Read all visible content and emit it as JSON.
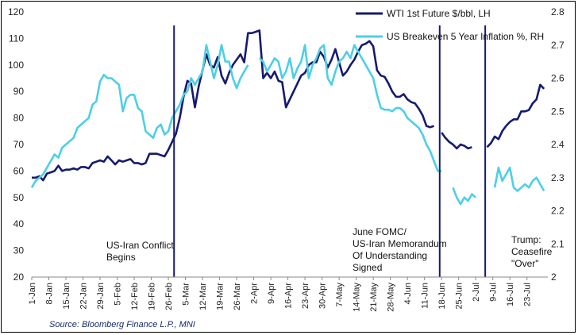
{
  "chart_data": {
    "type": "line",
    "title": "",
    "source": "Source: Bloomberg Finance L.P., MNI",
    "y_left": {
      "min": 20,
      "max": 120,
      "ticks": [
        "20",
        "30",
        "40",
        "50",
        "60",
        "70",
        "80",
        "90",
        "100",
        "110",
        "120"
      ]
    },
    "y_right": {
      "min": 2.0,
      "max": 2.8,
      "ticks": [
        "2",
        "2.1",
        "2.2",
        "2.3",
        "2.4",
        "2.5",
        "2.6",
        "2.7",
        "2.8"
      ]
    },
    "x_ticks": [
      "1-Jan",
      "8-Jan",
      "15-Jan",
      "22-Jan",
      "29-Jan",
      "5-Feb",
      "12-Feb",
      "19-Feb",
      "26-Feb",
      "5-Mar",
      "12-Mar",
      "19-Mar",
      "26-Mar",
      "2-Apr",
      "9-Apr",
      "16-Apr",
      "23-Apr",
      "30-Apr",
      "7-May",
      "14-May",
      "21-May",
      "28-May",
      "4-Jun",
      "11-Jun",
      "18-Jun",
      "25-Jun",
      "2-Jul",
      "9-Jul",
      "16-Jul",
      "23-Jul"
    ],
    "grid": false,
    "legend_placement": "top-right",
    "series": [
      {
        "name": "WTI 1st Future $/bbl, LH",
        "axis": "left",
        "color": "#161a6e",
        "segments": [
          [
            [
              0,
              57.5
            ],
            [
              1,
              57.5
            ],
            [
              2,
              58
            ],
            [
              3,
              56.5
            ],
            [
              4,
              59
            ],
            [
              5,
              59.5
            ],
            [
              6,
              60
            ],
            [
              7,
              62
            ],
            [
              8,
              60
            ],
            [
              9,
              60.5
            ],
            [
              10,
              60.5
            ],
            [
              11,
              61
            ],
            [
              12,
              60.5
            ],
            [
              13,
              61.5
            ],
            [
              14,
              61.5
            ],
            [
              15,
              61
            ],
            [
              16,
              63
            ],
            [
              17,
              63.5
            ],
            [
              18,
              64
            ],
            [
              19,
              63.5
            ],
            [
              20,
              65.5
            ],
            [
              21,
              64
            ],
            [
              22,
              62.5
            ],
            [
              23,
              64
            ],
            [
              24,
              63.5
            ],
            [
              25,
              64
            ],
            [
              26,
              64.5
            ],
            [
              27,
              63
            ],
            [
              28,
              63
            ],
            [
              29,
              62.5
            ],
            [
              30,
              63
            ],
            [
              31,
              66.5
            ],
            [
              32,
              66.5
            ],
            [
              33,
              66.5
            ],
            [
              34,
              66
            ],
            [
              35,
              65.5
            ],
            [
              36,
              68
            ],
            [
              37,
              71
            ],
            [
              38,
              74
            ],
            [
              39,
              80
            ],
            [
              40,
              88
            ],
            [
              41,
              94
            ],
            [
              42,
              93
            ],
            [
              43,
              84
            ],
            [
              44,
              92
            ],
            [
              45,
              98
            ],
            [
              46,
              104
            ],
            [
              47,
              100
            ],
            [
              48,
              99
            ],
            [
              49,
              103
            ],
            [
              50,
              96
            ],
            [
              51,
              93
            ],
            [
              52,
              97
            ],
            [
              53,
              100
            ],
            [
              54,
              102
            ],
            [
              55,
              104
            ],
            [
              56,
              101
            ],
            [
              57,
              112
            ],
            [
              58,
              112
            ],
            [
              59,
              112.5
            ],
            [
              60,
              113
            ],
            [
              61,
              95
            ],
            [
              62,
              97
            ],
            [
              63,
              95
            ],
            [
              64,
              97.5
            ],
            [
              65,
              94
            ],
            [
              66,
              93.5
            ],
            [
              67,
              84
            ],
            [
              68,
              87
            ],
            [
              69,
              90
            ],
            [
              70,
              93
            ],
            [
              71,
              96
            ],
            [
              72,
              97
            ],
            [
              73,
              100
            ],
            [
              74,
              101
            ],
            [
              75,
              101
            ],
            [
              76,
              105
            ],
            [
              77,
              103
            ],
            [
              78,
              99
            ],
            [
              79,
              102
            ],
            [
              80,
              106
            ],
            [
              81,
              101
            ],
            [
              82,
              96
            ],
            [
              83,
              97.5
            ],
            [
              84,
              100
            ],
            [
              85,
              102
            ],
            [
              86,
              105
            ],
            [
              87,
              107.5
            ],
            [
              88,
              108
            ],
            [
              89,
              109
            ],
            [
              90,
              107
            ],
            [
              91,
              98
            ],
            [
              92,
              96
            ],
            [
              93,
              95.5
            ],
            [
              94,
              93
            ],
            [
              95,
              90
            ],
            [
              96,
              88
            ],
            [
              97,
              88
            ],
            [
              98,
              89
            ],
            [
              99,
              87
            ],
            [
              100,
              86
            ],
            [
              101,
              85.5
            ],
            [
              102,
              83.5
            ],
            [
              103,
              81
            ],
            [
              104,
              77
            ],
            [
              105,
              76.5
            ],
            [
              106,
              77
            ]
          ],
          [
            [
              108,
              74.5
            ],
            [
              109,
              72.5
            ],
            [
              110,
              71
            ],
            [
              111,
              70
            ],
            [
              112,
              68.5
            ],
            [
              113,
              70
            ],
            [
              114,
              69.5
            ],
            [
              115,
              68.5
            ],
            [
              116,
              69
            ]
          ],
          [
            [
              120,
              69
            ],
            [
              121,
              70.5
            ],
            [
              122,
              73
            ],
            [
              123,
              72
            ],
            [
              124,
              75
            ],
            [
              125,
              77
            ],
            [
              126,
              78.5
            ],
            [
              127,
              79.5
            ],
            [
              128,
              79.5
            ],
            [
              129,
              82.5
            ],
            [
              130,
              82.5
            ],
            [
              131,
              83
            ],
            [
              132,
              85.5
            ],
            [
              133,
              87
            ],
            [
              134,
              92.5
            ],
            [
              135,
              91
            ]
          ]
        ]
      },
      {
        "name": "US Breakeven 5 Year Inflation %, RH",
        "axis": "right",
        "color": "#4dcfe6",
        "segments": [
          [
            [
              0,
              2.27
            ],
            [
              1,
              2.29
            ],
            [
              2,
              2.3
            ],
            [
              3,
              2.31
            ],
            [
              4,
              2.33
            ],
            [
              5,
              2.35
            ],
            [
              6,
              2.37
            ],
            [
              7,
              2.36
            ],
            [
              8,
              2.39
            ],
            [
              9,
              2.4
            ],
            [
              10,
              2.41
            ],
            [
              11,
              2.42
            ],
            [
              12,
              2.45
            ],
            [
              13,
              2.46
            ],
            [
              14,
              2.47
            ],
            [
              15,
              2.48
            ],
            [
              16,
              2.52
            ],
            [
              17,
              2.53
            ],
            [
              18,
              2.59
            ],
            [
              19,
              2.61
            ],
            [
              20,
              2.6
            ],
            [
              21,
              2.6
            ],
            [
              22,
              2.59
            ],
            [
              23,
              2.58
            ],
            [
              24,
              2.5
            ],
            [
              25,
              2.54
            ],
            [
              26,
              2.55
            ],
            [
              27,
              2.55
            ],
            [
              28,
              2.51
            ],
            [
              29,
              2.5
            ],
            [
              30,
              2.44
            ],
            [
              31,
              2.43
            ],
            [
              32,
              2.42
            ],
            [
              33,
              2.45
            ],
            [
              34,
              2.46
            ],
            [
              35,
              2.43
            ],
            [
              36,
              2.44
            ],
            [
              37,
              2.48
            ],
            [
              38,
              2.5
            ],
            [
              39,
              2.52
            ],
            [
              40,
              2.55
            ],
            [
              41,
              2.56
            ],
            [
              42,
              2.6
            ],
            [
              43,
              2.58
            ],
            [
              44,
              2.6
            ],
            [
              45,
              2.62
            ],
            [
              46,
              2.7
            ],
            [
              47,
              2.65
            ],
            [
              48,
              2.6
            ],
            [
              49,
              2.64
            ],
            [
              50,
              2.7
            ],
            [
              51,
              2.65
            ],
            [
              52,
              2.65
            ],
            [
              53,
              2.6
            ],
            [
              54,
              2.57
            ],
            [
              55,
              2.6
            ],
            [
              56,
              2.62
            ],
            [
              57,
              2.64
            ]
          ],
          [
            [
              60,
              2.66
            ],
            [
              61,
              2.65
            ],
            [
              62,
              2.62
            ],
            [
              63,
              2.64
            ],
            [
              64,
              2.66
            ],
            [
              65,
              2.65
            ],
            [
              66,
              2.6
            ],
            [
              67,
              2.62
            ],
            [
              68,
              2.66
            ],
            [
              69,
              2.6
            ],
            [
              70,
              2.63
            ],
            [
              71,
              2.65
            ],
            [
              72,
              2.7
            ],
            [
              73,
              2.6
            ],
            [
              74,
              2.64
            ],
            [
              75,
              2.66
            ],
            [
              76,
              2.69
            ],
            [
              77,
              2.7
            ],
            [
              78,
              2.6
            ],
            [
              79,
              2.58
            ],
            [
              80,
              2.62
            ],
            [
              81,
              2.65
            ],
            [
              82,
              2.66
            ],
            [
              83,
              2.68
            ],
            [
              84,
              2.66
            ],
            [
              85,
              2.7
            ],
            [
              86,
              2.68
            ],
            [
              87,
              2.66
            ],
            [
              88,
              2.64
            ],
            [
              89,
              2.62
            ],
            [
              90,
              2.6
            ],
            [
              91,
              2.55
            ],
            [
              92,
              2.51
            ],
            [
              93,
              2.505
            ],
            [
              94,
              2.505
            ],
            [
              95,
              2.5
            ],
            [
              96,
              2.51
            ],
            [
              97,
              2.51
            ],
            [
              98,
              2.5
            ],
            [
              99,
              2.48
            ],
            [
              100,
              2.47
            ],
            [
              101,
              2.46
            ],
            [
              102,
              2.45
            ],
            [
              103,
              2.43
            ],
            [
              104,
              2.4
            ],
            [
              105,
              2.38
            ],
            [
              106,
              2.35
            ],
            [
              107,
              2.32
            ],
            [
              108,
              2.32
            ]
          ],
          [
            [
              111,
              2.27
            ],
            [
              112,
              2.24
            ],
            [
              113,
              2.22
            ],
            [
              114,
              2.24
            ],
            [
              115,
              2.23
            ],
            [
              116,
              2.25
            ],
            [
              117,
              2.24
            ]
          ],
          [
            [
              122,
              2.27
            ],
            [
              123,
              2.33
            ],
            [
              124,
              2.29
            ],
            [
              125,
              2.31
            ],
            [
              126,
              2.33
            ],
            [
              127,
              2.27
            ],
            [
              128,
              2.26
            ],
            [
              129,
              2.27
            ],
            [
              130,
              2.28
            ],
            [
              131,
              2.27
            ],
            [
              132,
              2.29
            ],
            [
              133,
              2.3
            ],
            [
              134,
              2.28
            ],
            [
              135,
              2.26
            ]
          ]
        ]
      }
    ],
    "events": [
      {
        "x": 37.5,
        "lines": [
          "US-Iran Conflict",
          "Begins"
        ]
      },
      {
        "x": 107.5,
        "lines": [
          "June FOMC/",
          "US-Iran Memorandum",
          "Of Understanding",
          "Signed"
        ]
      },
      {
        "x": 119.5,
        "lines": [
          "Trump:",
          "Ceasefire",
          "\"Over\""
        ]
      }
    ]
  }
}
